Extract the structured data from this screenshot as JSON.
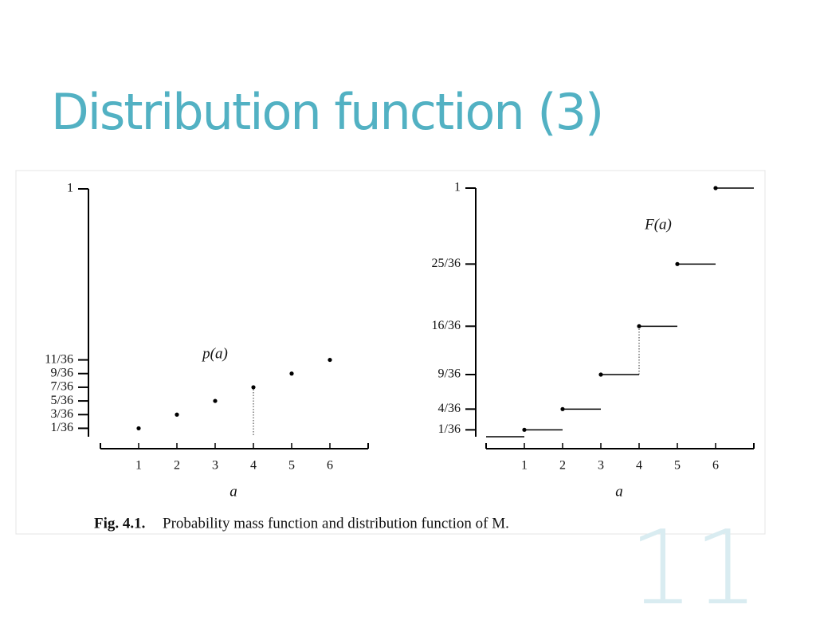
{
  "title": "Distribution function (3)",
  "page_number": "11",
  "caption_label": "Fig. 4.1.",
  "caption_text": "Probability mass function and distribution function of M.",
  "chart_data": [
    {
      "type": "scatter",
      "annotation": "p(a)",
      "x_label": "a",
      "x": [
        1,
        2,
        3,
        4,
        5,
        6
      ],
      "values": [
        0.027778,
        0.083333,
        0.138889,
        0.194444,
        0.25,
        0.305556
      ],
      "color": "#000000",
      "highlight_x": 4,
      "xlim": [
        0,
        7
      ],
      "xticks": [
        1,
        2,
        3,
        4,
        5,
        6
      ],
      "ylim": [
        0,
        1
      ],
      "yticks": [
        {
          "value": 0.027778,
          "label": "1/36"
        },
        {
          "value": 0.083333,
          "label": "3/36"
        },
        {
          "value": 0.138889,
          "label": "5/36"
        },
        {
          "value": 0.194444,
          "label": "7/36"
        },
        {
          "value": 0.25,
          "label": "9/36"
        },
        {
          "value": 0.305556,
          "label": "11/36"
        },
        1
      ]
    },
    {
      "type": "step",
      "annotation": "F(a)",
      "x_label": "a",
      "x": [
        0,
        1,
        2,
        3,
        4,
        5,
        6
      ],
      "values": [
        0,
        0.027778,
        0.111111,
        0.25,
        0.444444,
        0.694444,
        1
      ],
      "color": "#000000",
      "highlight_x": 4,
      "xlim": [
        0,
        7
      ],
      "xticks": [
        1,
        2,
        3,
        4,
        5,
        6
      ],
      "ylim": [
        0,
        1
      ],
      "yticks": [
        {
          "value": 0.027778,
          "label": "1/36"
        },
        {
          "value": 0.111111,
          "label": "4/36"
        },
        {
          "value": 0.25,
          "label": "9/36"
        },
        {
          "value": 0.444444,
          "label": "16/36"
        },
        {
          "value": 0.694444,
          "label": "25/36"
        },
        1
      ]
    }
  ]
}
